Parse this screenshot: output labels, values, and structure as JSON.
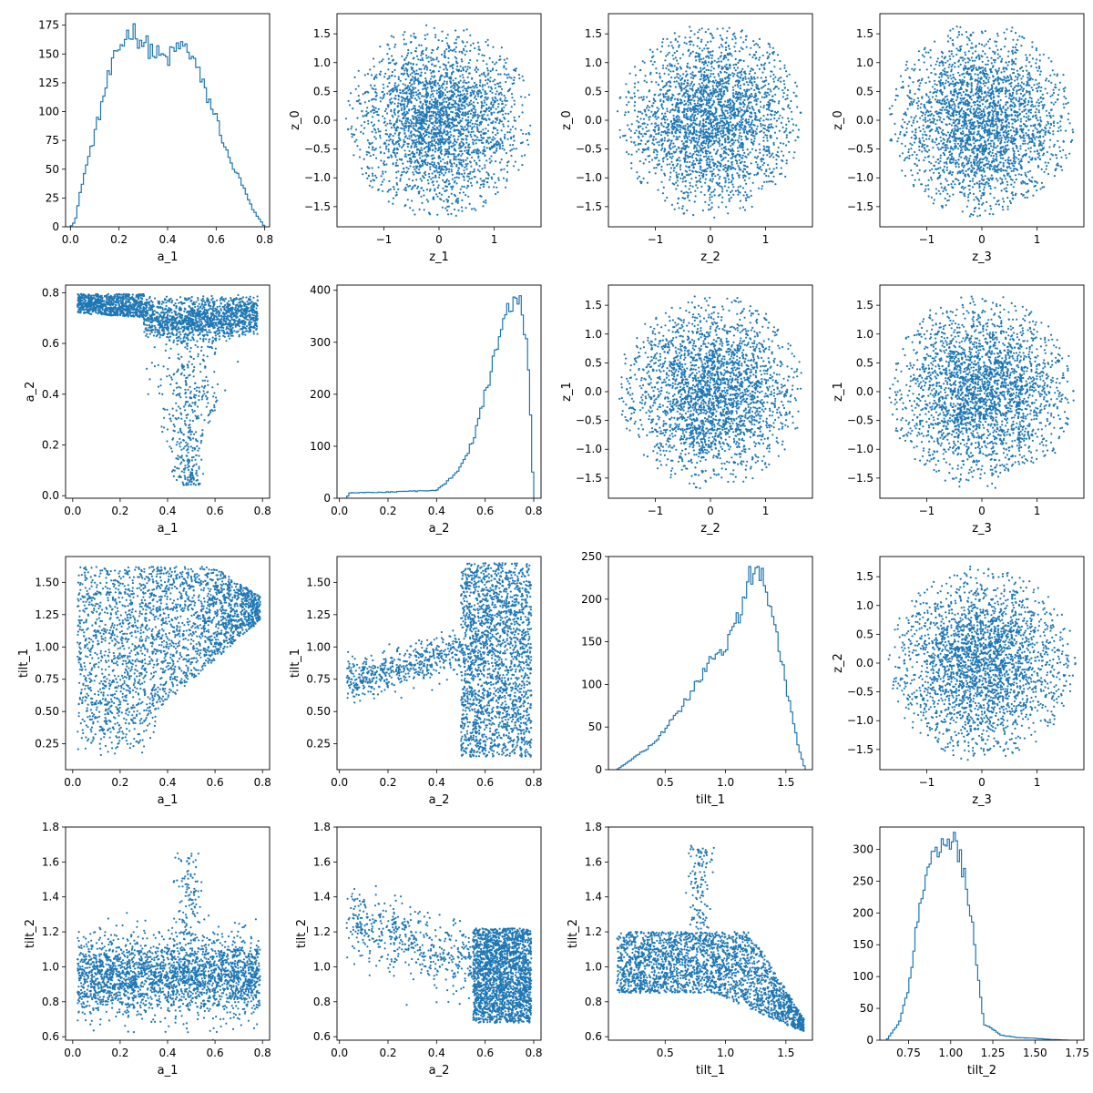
{
  "colors": {
    "series": "#1f77b4",
    "axis": "#000000",
    "background": "#ffffff"
  },
  "chart_data": [
    {
      "type": "histogram",
      "row": 0,
      "col": 0,
      "xlabel": "a_1",
      "ylabel": "",
      "xlim": [
        -0.02,
        0.82
      ],
      "ylim": [
        0,
        185
      ],
      "xticks": [
        "0.0",
        "0.2",
        "0.4",
        "0.6",
        "0.8"
      ],
      "yticks": [
        "0",
        "25",
        "50",
        "75",
        "100",
        "125",
        "150",
        "175"
      ],
      "profile": [
        [
          0.0,
          0
        ],
        [
          0.02,
          5
        ],
        [
          0.05,
          40
        ],
        [
          0.1,
          80
        ],
        [
          0.15,
          125
        ],
        [
          0.2,
          155
        ],
        [
          0.25,
          172
        ],
        [
          0.3,
          160
        ],
        [
          0.35,
          150
        ],
        [
          0.4,
          145
        ],
        [
          0.45,
          158
        ],
        [
          0.5,
          150
        ],
        [
          0.55,
          120
        ],
        [
          0.6,
          95
        ],
        [
          0.65,
          60
        ],
        [
          0.7,
          40
        ],
        [
          0.75,
          15
        ],
        [
          0.8,
          0
        ]
      ]
    },
    {
      "type": "scatter",
      "row": 0,
      "col": 1,
      "xlabel": "z_1",
      "ylabel": "z_0",
      "xlim": [
        -1.85,
        1.85
      ],
      "ylim": [
        -1.85,
        1.85
      ],
      "xticks": [
        "−1",
        "0",
        "1"
      ],
      "yticks": [
        "−1.5",
        "−1.0",
        "−0.5",
        "0.0",
        "0.5",
        "1.0",
        "1.5"
      ],
      "shape": "disk"
    },
    {
      "type": "scatter",
      "row": 0,
      "col": 2,
      "xlabel": "z_2",
      "ylabel": "z_0",
      "xlim": [
        -1.85,
        1.85
      ],
      "ylim": [
        -1.85,
        1.85
      ],
      "xticks": [
        "−1",
        "0",
        "1"
      ],
      "yticks": [
        "−1.5",
        "−1.0",
        "−0.5",
        "0.0",
        "0.5",
        "1.0",
        "1.5"
      ],
      "shape": "disk"
    },
    {
      "type": "scatter",
      "row": 0,
      "col": 3,
      "xlabel": "z_3",
      "ylabel": "z_0",
      "xlim": [
        -1.85,
        1.85
      ],
      "ylim": [
        -1.85,
        1.85
      ],
      "xticks": [
        "−1",
        "0",
        "1"
      ],
      "yticks": [
        "−1.5",
        "−1.0",
        "−0.5",
        "0.0",
        "0.5",
        "1.0",
        "1.5"
      ],
      "shape": "disk"
    },
    {
      "type": "scatter",
      "row": 1,
      "col": 0,
      "xlabel": "a_1",
      "ylabel": "a_2",
      "xlim": [
        -0.03,
        0.83
      ],
      "ylim": [
        -0.01,
        0.83
      ],
      "xticks": [
        "0.0",
        "0.2",
        "0.4",
        "0.6",
        "0.8"
      ],
      "yticks": [
        "0.0",
        "0.2",
        "0.4",
        "0.6",
        "0.8"
      ],
      "shape": "a1_a2"
    },
    {
      "type": "histogram",
      "row": 1,
      "col": 1,
      "xlabel": "a_2",
      "ylabel": "",
      "xlim": [
        -0.01,
        0.83
      ],
      "ylim": [
        0,
        410
      ],
      "xticks": [
        "0.0",
        "0.2",
        "0.4",
        "0.6",
        "0.8"
      ],
      "yticks": [
        "0",
        "100",
        "200",
        "300",
        "400"
      ],
      "profile": [
        [
          0.03,
          0
        ],
        [
          0.04,
          10
        ],
        [
          0.2,
          12
        ],
        [
          0.4,
          15
        ],
        [
          0.45,
          35
        ],
        [
          0.5,
          60
        ],
        [
          0.55,
          110
        ],
        [
          0.6,
          200
        ],
        [
          0.65,
          290
        ],
        [
          0.7,
          370
        ],
        [
          0.72,
          390
        ],
        [
          0.75,
          370
        ],
        [
          0.78,
          250
        ],
        [
          0.8,
          0
        ]
      ]
    },
    {
      "type": "scatter",
      "row": 1,
      "col": 2,
      "xlabel": "z_2",
      "ylabel": "z_1",
      "xlim": [
        -1.85,
        1.85
      ],
      "ylim": [
        -1.85,
        1.85
      ],
      "xticks": [
        "−1",
        "0",
        "1"
      ],
      "yticks": [
        "−1.5",
        "−1.0",
        "−0.5",
        "0.0",
        "0.5",
        "1.0",
        "1.5"
      ],
      "shape": "disk"
    },
    {
      "type": "scatter",
      "row": 1,
      "col": 3,
      "xlabel": "z_3",
      "ylabel": "z_1",
      "xlim": [
        -1.85,
        1.85
      ],
      "ylim": [
        -1.85,
        1.85
      ],
      "xticks": [
        "−1",
        "0",
        "1"
      ],
      "yticks": [
        "−1.5",
        "−1.0",
        "−0.5",
        "0.0",
        "0.5",
        "1.0",
        "1.5"
      ],
      "shape": "disk"
    },
    {
      "type": "scatter",
      "row": 2,
      "col": 0,
      "xlabel": "a_1",
      "ylabel": "tilt_1",
      "xlim": [
        -0.03,
        0.83
      ],
      "ylim": [
        0.05,
        1.7
      ],
      "xticks": [
        "0.0",
        "0.2",
        "0.4",
        "0.6",
        "0.8"
      ],
      "yticks": [
        "0.25",
        "0.50",
        "0.75",
        "1.00",
        "1.25",
        "1.50"
      ],
      "shape": "a1_tilt1"
    },
    {
      "type": "scatter",
      "row": 2,
      "col": 1,
      "xlabel": "a_2",
      "ylabel": "tilt_1",
      "xlim": [
        -0.01,
        0.83
      ],
      "ylim": [
        0.05,
        1.7
      ],
      "xticks": [
        "0.0",
        "0.2",
        "0.4",
        "0.6",
        "0.8"
      ],
      "yticks": [
        "0.25",
        "0.50",
        "0.75",
        "1.00",
        "1.25",
        "1.50"
      ],
      "shape": "a2_tilt1"
    },
    {
      "type": "histogram",
      "row": 2,
      "col": 2,
      "xlabel": "tilt_1",
      "ylabel": "",
      "xlim": [
        0.03,
        1.72
      ],
      "ylim": [
        0,
        250
      ],
      "xticks": [
        "0.5",
        "1.0",
        "1.5"
      ],
      "yticks": [
        "0",
        "50",
        "100",
        "150",
        "200",
        "250"
      ],
      "profile": [
        [
          0.1,
          0
        ],
        [
          0.2,
          10
        ],
        [
          0.4,
          30
        ],
        [
          0.6,
          65
        ],
        [
          0.8,
          110
        ],
        [
          0.9,
          135
        ],
        [
          1.0,
          145
        ],
        [
          1.1,
          175
        ],
        [
          1.2,
          225
        ],
        [
          1.25,
          238
        ],
        [
          1.3,
          230
        ],
        [
          1.4,
          175
        ],
        [
          1.5,
          100
        ],
        [
          1.6,
          30
        ],
        [
          1.66,
          0
        ]
      ]
    },
    {
      "type": "scatter",
      "row": 2,
      "col": 3,
      "xlabel": "z_3",
      "ylabel": "z_2",
      "xlim": [
        -1.85,
        1.85
      ],
      "ylim": [
        -1.85,
        1.85
      ],
      "xticks": [
        "−1",
        "0",
        "1"
      ],
      "yticks": [
        "−1.5",
        "−1.0",
        "−0.5",
        "0.0",
        "0.5",
        "1.0",
        "1.5"
      ],
      "shape": "disk"
    },
    {
      "type": "scatter",
      "row": 3,
      "col": 0,
      "xlabel": "a_1",
      "ylabel": "tilt_2",
      "xlim": [
        -0.03,
        0.83
      ],
      "ylim": [
        0.58,
        1.8
      ],
      "xticks": [
        "0.0",
        "0.2",
        "0.4",
        "0.6",
        "0.8"
      ],
      "yticks": [
        "0.6",
        "0.8",
        "1.0",
        "1.2",
        "1.4",
        "1.6",
        "1.8"
      ],
      "shape": "a1_tilt2"
    },
    {
      "type": "scatter",
      "row": 3,
      "col": 1,
      "xlabel": "a_2",
      "ylabel": "tilt_2",
      "xlim": [
        -0.01,
        0.83
      ],
      "ylim": [
        0.58,
        1.8
      ],
      "xticks": [
        "0.0",
        "0.2",
        "0.4",
        "0.6",
        "0.8"
      ],
      "yticks": [
        "0.6",
        "0.8",
        "1.0",
        "1.2",
        "1.4",
        "1.6",
        "1.8"
      ],
      "shape": "a2_tilt2"
    },
    {
      "type": "scatter",
      "row": 3,
      "col": 2,
      "xlabel": "tilt_1",
      "ylabel": "tilt_2",
      "xlim": [
        0.03,
        1.72
      ],
      "ylim": [
        0.58,
        1.8
      ],
      "xticks": [
        "0.5",
        "1.0",
        "1.5"
      ],
      "yticks": [
        "0.6",
        "0.8",
        "1.0",
        "1.2",
        "1.4",
        "1.6",
        "1.8"
      ],
      "shape": "tilt1_tilt2"
    },
    {
      "type": "histogram",
      "row": 3,
      "col": 3,
      "xlabel": "tilt_2",
      "ylabel": "",
      "xlim": [
        0.58,
        1.79
      ],
      "ylim": [
        0,
        335
      ],
      "xticks": [
        "0.75",
        "1.00",
        "1.25",
        "1.50",
        "1.75"
      ],
      "yticks": [
        "0",
        "50",
        "100",
        "150",
        "200",
        "250",
        "300"
      ],
      "profile": [
        [
          0.62,
          0
        ],
        [
          0.7,
          30
        ],
        [
          0.75,
          80
        ],
        [
          0.8,
          180
        ],
        [
          0.85,
          260
        ],
        [
          0.9,
          290
        ],
        [
          0.95,
          300
        ],
        [
          1.0,
          310
        ],
        [
          1.03,
          315
        ],
        [
          1.08,
          260
        ],
        [
          1.12,
          200
        ],
        [
          1.17,
          80
        ],
        [
          1.2,
          25
        ],
        [
          1.3,
          8
        ],
        [
          1.4,
          4
        ],
        [
          1.5,
          3
        ],
        [
          1.6,
          1
        ],
        [
          1.7,
          0
        ]
      ]
    }
  ]
}
